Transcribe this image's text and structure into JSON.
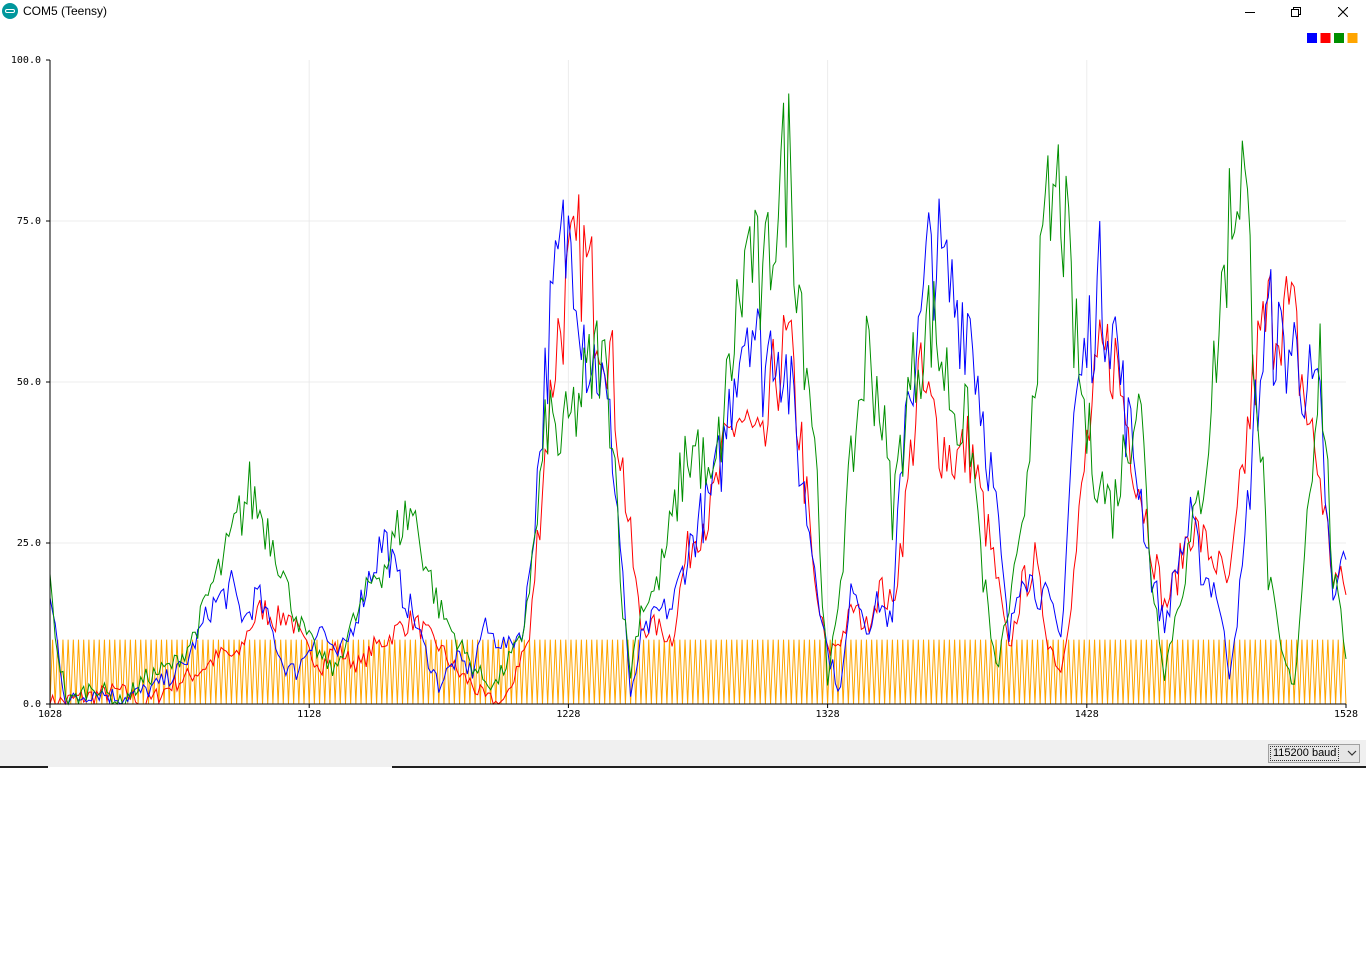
{
  "window": {
    "title": "COM5 (Teensy)",
    "icon": "arduino-icon",
    "controls": [
      "minimize-icon",
      "maximize-icon",
      "close-icon"
    ]
  },
  "legend": {
    "colors": [
      "#0000ff",
      "#ff0000",
      "#008f00",
      "#ffa500"
    ]
  },
  "baud": {
    "value": "115200 baud"
  },
  "chart_data": {
    "type": "line",
    "title": "",
    "xlabel": "",
    "ylabel": "",
    "xlim": [
      1028,
      1528
    ],
    "ylim": [
      0,
      100
    ],
    "grid": true,
    "legend_position": "top-right",
    "y_ticks": [
      "100.0",
      "75.0",
      "50.0",
      "25.0",
      "0.0"
    ],
    "x_ticks": [
      "1028",
      "1128",
      "1228",
      "1328",
      "1428",
      "1528"
    ],
    "series": [
      {
        "color": "#0000ff",
        "keypoints": [
          [
            1028,
            16
          ],
          [
            1030,
            12
          ],
          [
            1034,
            0
          ],
          [
            1045,
            2
          ],
          [
            1055,
            1
          ],
          [
            1065,
            2
          ],
          [
            1070,
            3
          ],
          [
            1080,
            6
          ],
          [
            1090,
            15
          ],
          [
            1098,
            18
          ],
          [
            1103,
            13
          ],
          [
            1108,
            17
          ],
          [
            1113,
            12
          ],
          [
            1118,
            6
          ],
          [
            1123,
            5
          ],
          [
            1128,
            9
          ],
          [
            1133,
            12
          ],
          [
            1138,
            7
          ],
          [
            1143,
            10
          ],
          [
            1148,
            16
          ],
          [
            1153,
            22
          ],
          [
            1157,
            26
          ],
          [
            1162,
            19
          ],
          [
            1168,
            14
          ],
          [
            1173,
            8
          ],
          [
            1178,
            3
          ],
          [
            1185,
            7
          ],
          [
            1191,
            5
          ],
          [
            1195,
            12
          ],
          [
            1200,
            10
          ],
          [
            1205,
            9
          ],
          [
            1211,
            12
          ],
          [
            1215,
            30
          ],
          [
            1220,
            55
          ],
          [
            1225,
            70
          ],
          [
            1230,
            73
          ],
          [
            1235,
            55
          ],
          [
            1240,
            52
          ],
          [
            1245,
            40
          ],
          [
            1249,
            20
          ],
          [
            1252,
            0
          ],
          [
            1256,
            10
          ],
          [
            1262,
            14
          ],
          [
            1268,
            15
          ],
          [
            1273,
            22
          ],
          [
            1278,
            28
          ],
          [
            1283,
            32
          ],
          [
            1288,
            40
          ],
          [
            1293,
            55
          ],
          [
            1298,
            62
          ],
          [
            1303,
            52
          ],
          [
            1308,
            58
          ],
          [
            1313,
            50
          ],
          [
            1318,
            35
          ],
          [
            1323,
            22
          ],
          [
            1328,
            8
          ],
          [
            1333,
            2
          ],
          [
            1338,
            20
          ],
          [
            1343,
            12
          ],
          [
            1348,
            16
          ],
          [
            1353,
            12
          ],
          [
            1358,
            48
          ],
          [
            1363,
            55
          ],
          [
            1368,
            72
          ],
          [
            1373,
            66
          ],
          [
            1378,
            62
          ],
          [
            1383,
            60
          ],
          [
            1388,
            45
          ],
          [
            1393,
            30
          ],
          [
            1398,
            10
          ],
          [
            1403,
            22
          ],
          [
            1408,
            18
          ],
          [
            1413,
            16
          ],
          [
            1418,
            10
          ],
          [
            1423,
            45
          ],
          [
            1428,
            55
          ],
          [
            1433,
            65
          ],
          [
            1438,
            60
          ],
          [
            1443,
            45
          ],
          [
            1448,
            35
          ],
          [
            1453,
            20
          ],
          [
            1458,
            12
          ],
          [
            1463,
            22
          ],
          [
            1468,
            28
          ],
          [
            1473,
            20
          ],
          [
            1478,
            18
          ],
          [
            1483,
            5
          ],
          [
            1488,
            20
          ],
          [
            1493,
            45
          ],
          [
            1498,
            60
          ],
          [
            1503,
            55
          ],
          [
            1508,
            55
          ],
          [
            1513,
            50
          ],
          [
            1518,
            45
          ],
          [
            1523,
            15
          ],
          [
            1528,
            25
          ]
        ]
      },
      {
        "color": "#ff0000",
        "keypoints": [
          [
            1028,
            0
          ],
          [
            1040,
            1
          ],
          [
            1055,
            2
          ],
          [
            1065,
            0
          ],
          [
            1075,
            3
          ],
          [
            1085,
            5
          ],
          [
            1095,
            8
          ],
          [
            1100,
            7
          ],
          [
            1105,
            12
          ],
          [
            1110,
            15
          ],
          [
            1115,
            13
          ],
          [
            1120,
            14
          ],
          [
            1125,
            10
          ],
          [
            1128,
            8
          ],
          [
            1133,
            6
          ],
          [
            1138,
            9
          ],
          [
            1143,
            7
          ],
          [
            1148,
            6
          ],
          [
            1153,
            9
          ],
          [
            1158,
            10
          ],
          [
            1163,
            12
          ],
          [
            1168,
            13
          ],
          [
            1173,
            11
          ],
          [
            1178,
            9
          ],
          [
            1185,
            5
          ],
          [
            1191,
            3
          ],
          [
            1195,
            1
          ],
          [
            1200,
            0
          ],
          [
            1205,
            1
          ],
          [
            1208,
            6
          ],
          [
            1213,
            10
          ],
          [
            1218,
            35
          ],
          [
            1223,
            55
          ],
          [
            1228,
            65
          ],
          [
            1233,
            70
          ],
          [
            1238,
            63
          ],
          [
            1243,
            58
          ],
          [
            1248,
            40
          ],
          [
            1252,
            25
          ],
          [
            1256,
            12
          ],
          [
            1262,
            12
          ],
          [
            1268,
            10
          ],
          [
            1273,
            22
          ],
          [
            1278,
            28
          ],
          [
            1283,
            30
          ],
          [
            1288,
            38
          ],
          [
            1293,
            45
          ],
          [
            1298,
            42
          ],
          [
            1303,
            38
          ],
          [
            1308,
            52
          ],
          [
            1313,
            55
          ],
          [
            1318,
            40
          ],
          [
            1323,
            18
          ],
          [
            1328,
            8
          ],
          [
            1333,
            10
          ],
          [
            1338,
            15
          ],
          [
            1343,
            12
          ],
          [
            1348,
            18
          ],
          [
            1353,
            15
          ],
          [
            1358,
            30
          ],
          [
            1363,
            50
          ],
          [
            1368,
            45
          ],
          [
            1373,
            40
          ],
          [
            1378,
            38
          ],
          [
            1383,
            40
          ],
          [
            1388,
            30
          ],
          [
            1393,
            20
          ],
          [
            1398,
            8
          ],
          [
            1403,
            18
          ],
          [
            1408,
            22
          ],
          [
            1413,
            10
          ],
          [
            1418,
            5
          ],
          [
            1423,
            20
          ],
          [
            1428,
            40
          ],
          [
            1433,
            52
          ],
          [
            1438,
            55
          ],
          [
            1443,
            45
          ],
          [
            1448,
            35
          ],
          [
            1453,
            25
          ],
          [
            1458,
            15
          ],
          [
            1463,
            20
          ],
          [
            1468,
            28
          ],
          [
            1473,
            25
          ],
          [
            1478,
            22
          ],
          [
            1483,
            18
          ],
          [
            1488,
            35
          ],
          [
            1493,
            52
          ],
          [
            1498,
            60
          ],
          [
            1503,
            62
          ],
          [
            1508,
            58
          ],
          [
            1513,
            45
          ],
          [
            1518,
            35
          ],
          [
            1523,
            20
          ],
          [
            1528,
            18
          ]
        ]
      },
      {
        "color": "#008f00",
        "keypoints": [
          [
            1028,
            18
          ],
          [
            1031,
            8
          ],
          [
            1035,
            0
          ],
          [
            1045,
            3
          ],
          [
            1055,
            0
          ],
          [
            1065,
            4
          ],
          [
            1075,
            6
          ],
          [
            1080,
            8
          ],
          [
            1085,
            12
          ],
          [
            1090,
            18
          ],
          [
            1095,
            22
          ],
          [
            1100,
            28
          ],
          [
            1105,
            33
          ],
          [
            1110,
            29
          ],
          [
            1115,
            25
          ],
          [
            1120,
            17
          ],
          [
            1125,
            12
          ],
          [
            1128,
            10
          ],
          [
            1133,
            7
          ],
          [
            1138,
            5
          ],
          [
            1143,
            11
          ],
          [
            1148,
            15
          ],
          [
            1153,
            20
          ],
          [
            1158,
            22
          ],
          [
            1163,
            28
          ],
          [
            1168,
            30
          ],
          [
            1173,
            22
          ],
          [
            1178,
            15
          ],
          [
            1185,
            10
          ],
          [
            1191,
            6
          ],
          [
            1195,
            4
          ],
          [
            1200,
            3
          ],
          [
            1205,
            7
          ],
          [
            1210,
            10
          ],
          [
            1215,
            25
          ],
          [
            1220,
            45
          ],
          [
            1225,
            40
          ],
          [
            1230,
            45
          ],
          [
            1235,
            50
          ],
          [
            1240,
            55
          ],
          [
            1245,
            45
          ],
          [
            1249,
            15
          ],
          [
            1252,
            5
          ],
          [
            1256,
            15
          ],
          [
            1262,
            18
          ],
          [
            1268,
            28
          ],
          [
            1273,
            38
          ],
          [
            1278,
            40
          ],
          [
            1283,
            32
          ],
          [
            1288,
            45
          ],
          [
            1293,
            60
          ],
          [
            1298,
            72
          ],
          [
            1303,
            62
          ],
          [
            1308,
            78
          ],
          [
            1313,
            85
          ],
          [
            1318,
            62
          ],
          [
            1323,
            42
          ],
          [
            1328,
            2
          ],
          [
            1333,
            20
          ],
          [
            1338,
            40
          ],
          [
            1343,
            55
          ],
          [
            1348,
            48
          ],
          [
            1353,
            30
          ],
          [
            1358,
            45
          ],
          [
            1363,
            55
          ],
          [
            1368,
            60
          ],
          [
            1373,
            52
          ],
          [
            1378,
            45
          ],
          [
            1383,
            42
          ],
          [
            1388,
            20
          ],
          [
            1393,
            5
          ],
          [
            1398,
            15
          ],
          [
            1403,
            25
          ],
          [
            1408,
            55
          ],
          [
            1413,
            75
          ],
          [
            1418,
            80
          ],
          [
            1423,
            58
          ],
          [
            1428,
            42
          ],
          [
            1433,
            35
          ],
          [
            1438,
            30
          ],
          [
            1443,
            40
          ],
          [
            1448,
            50
          ],
          [
            1453,
            20
          ],
          [
            1458,
            5
          ],
          [
            1463,
            15
          ],
          [
            1468,
            25
          ],
          [
            1473,
            35
          ],
          [
            1478,
            55
          ],
          [
            1483,
            75
          ],
          [
            1488,
            85
          ],
          [
            1493,
            55
          ],
          [
            1498,
            20
          ],
          [
            1503,
            8
          ],
          [
            1508,
            2
          ],
          [
            1513,
            30
          ],
          [
            1518,
            55
          ],
          [
            1523,
            20
          ],
          [
            1528,
            8
          ]
        ]
      },
      {
        "color": "#ffa500",
        "pattern": "triangle",
        "min": 0,
        "max": 10,
        "period": 2
      }
    ]
  }
}
